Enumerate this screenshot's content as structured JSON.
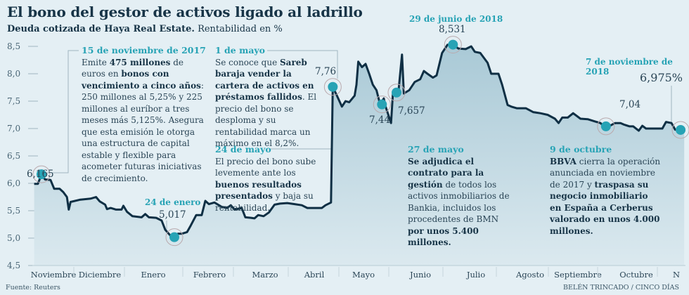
{
  "header": {
    "title": "El bono del gestor de activos ligado al ladrillo",
    "subtitle_bold": "Deuda cotizada de Haya Real Estate.",
    "subtitle_rest": " Rentabilidad en %"
  },
  "footer": {
    "source": "Fuente: Reuters",
    "credit": "BELÉN TRINCADO / CINCO DÍAS"
  },
  "colors": {
    "background": "#e4eff4",
    "line": "#0f2f44",
    "area_top": "#a9c9d6",
    "area_bottom": "#dbe9ef",
    "highlight": "#27a3b5",
    "text": "#2a4556"
  },
  "annotations": {
    "nov15": {
      "date": "15 de noviembre de 2017",
      "parts": [
        {
          "t": "Emite ",
          "b": false
        },
        {
          "t": "475 millones",
          "b": true
        },
        {
          "t": " de euros en ",
          "b": false
        },
        {
          "t": "bonos con vencimiento a cinco años",
          "b": true
        },
        {
          "t": ": 250 millones al 5,25% y 225 millones al euríbor a tres meses más 5,125%. Asegura que esta emisión le otorga una estructura de capital estable y flexible para acometer futuras iniciativas de crecimiento.",
          "b": false
        }
      ]
    },
    "may1": {
      "date": "1 de mayo",
      "parts": [
        {
          "t": "Se conoce que ",
          "b": false
        },
        {
          "t": "Sareb baraja vender la cartera de activos en préstamos fallidos",
          "b": true
        },
        {
          "t": ". El precio del bono se desploma y su rentabilidad marca un máximo en el 8,2%.",
          "b": false
        }
      ]
    },
    "may24": {
      "date": "24 de mayo",
      "parts": [
        {
          "t": "El precio del bono sube levemente ante los ",
          "b": false
        },
        {
          "t": "buenos resultados presentados",
          "b": true
        },
        {
          "t": " y baja su rentabilidad.",
          "b": false
        }
      ]
    },
    "may27": {
      "date": "27 de mayo",
      "parts": [
        {
          "t": "Se adjudica el contrato para la gestión",
          "b": true
        },
        {
          "t": " de todos los activos inmobiliarios de Bankia, incluidos los procedentes de BMN ",
          "b": false
        },
        {
          "t": "por unos 5.400 millones.",
          "b": true
        }
      ]
    },
    "oct9": {
      "date": "9 de octubre",
      "parts": [
        {
          "t": "BBVA",
          "b": true
        },
        {
          "t": " cierra la operación anunciada en noviembre de 2017 y ",
          "b": false
        },
        {
          "t": "traspasa su negocio inmobiliario en España a Cerberus valorado en unos 4.000 millones.",
          "b": true
        }
      ]
    }
  },
  "chart_data": {
    "type": "area",
    "title": "El bono del gestor de activos ligado al ladrillo",
    "subtitle": "Deuda cotizada de Haya Real Estate. Rentabilidad en %",
    "xlabel": "",
    "ylabel": "Rentabilidad en %",
    "ylim": [
      4.5,
      8.5
    ],
    "yticks": [
      "8,5",
      "8,0",
      "7,5",
      "7,0",
      "6,5",
      "6,0",
      "5,5",
      "5,0",
      "4,5"
    ],
    "ytick_values": [
      8.5,
      8.0,
      7.5,
      7.0,
      6.5,
      6.0,
      5.5,
      5.0,
      4.5
    ],
    "grid": false,
    "months": [
      "Noviembre",
      "Diciembre",
      "Enero",
      "Febrero",
      "Marzo",
      "Abril",
      "Mayo",
      "Junio",
      "Julio",
      "Agosto",
      "Septiembre",
      "Octubre",
      "N"
    ],
    "x_unit": "months since 1 nov 2017",
    "series": [
      {
        "name": "Rentabilidad",
        "points": [
          [
            0.05,
            5.99
          ],
          [
            0.15,
            5.99
          ],
          [
            0.25,
            6.16
          ],
          [
            0.35,
            6.07
          ],
          [
            0.5,
            6.06
          ],
          [
            0.6,
            5.9
          ],
          [
            0.75,
            5.9
          ],
          [
            0.85,
            5.84
          ],
          [
            0.95,
            5.75
          ],
          [
            1.0,
            5.52
          ],
          [
            1.05,
            5.66
          ],
          [
            1.3,
            5.7
          ],
          [
            1.6,
            5.72
          ],
          [
            1.75,
            5.75
          ],
          [
            1.85,
            5.67
          ],
          [
            2.0,
            5.61
          ],
          [
            2.05,
            5.53
          ],
          [
            2.15,
            5.55
          ],
          [
            2.3,
            5.52
          ],
          [
            2.45,
            5.52
          ],
          [
            2.5,
            5.59
          ],
          [
            2.6,
            5.48
          ],
          [
            2.75,
            5.4
          ],
          [
            3.0,
            5.38
          ],
          [
            3.1,
            5.44
          ],
          [
            3.2,
            5.38
          ],
          [
            3.4,
            5.37
          ],
          [
            3.55,
            5.32
          ],
          [
            3.65,
            5.15
          ],
          [
            3.8,
            5.04
          ],
          [
            3.9,
            5.02
          ],
          [
            4.0,
            5.08
          ],
          [
            4.1,
            5.08
          ],
          [
            4.25,
            5.11
          ],
          [
            4.35,
            5.23
          ],
          [
            4.5,
            5.42
          ],
          [
            4.65,
            5.42
          ],
          [
            4.75,
            5.68
          ],
          [
            4.85,
            5.62
          ],
          [
            5.0,
            5.65
          ],
          [
            5.2,
            5.57
          ],
          [
            5.35,
            5.55
          ],
          [
            5.45,
            5.6
          ],
          [
            5.55,
            5.52
          ],
          [
            5.75,
            5.55
          ],
          [
            5.85,
            5.38
          ],
          [
            6.0,
            5.37
          ],
          [
            6.1,
            5.36
          ],
          [
            6.2,
            5.42
          ],
          [
            6.35,
            5.4
          ],
          [
            6.5,
            5.47
          ],
          [
            6.65,
            5.61
          ],
          [
            6.8,
            5.63
          ],
          [
            7.0,
            5.64
          ],
          [
            7.2,
            5.62
          ],
          [
            7.4,
            5.6
          ],
          [
            7.55,
            5.55
          ],
          [
            7.75,
            5.55
          ],
          [
            7.95,
            5.55
          ],
          [
            8.05,
            5.6
          ],
          [
            8.2,
            5.65
          ],
          [
            8.25,
            7.76
          ],
          [
            8.35,
            7.62
          ],
          [
            8.5,
            7.4
          ],
          [
            8.6,
            7.5
          ],
          [
            8.7,
            7.48
          ],
          [
            8.85,
            7.6
          ],
          [
            8.9,
            7.8
          ],
          [
            8.95,
            8.22
          ],
          [
            9.05,
            8.12
          ],
          [
            9.15,
            8.18
          ],
          [
            9.25,
            8.0
          ],
          [
            9.35,
            7.8
          ],
          [
            9.45,
            7.7
          ],
          [
            9.55,
            7.44
          ],
          [
            9.65,
            7.55
          ],
          [
            9.7,
            7.4
          ],
          [
            9.8,
            7.2
          ],
          [
            9.85,
            7.1
          ],
          [
            9.9,
            7.63
          ],
          [
            9.95,
            7.7
          ],
          [
            10.05,
            7.657
          ],
          [
            10.15,
            8.35
          ],
          [
            10.2,
            7.64
          ],
          [
            10.35,
            7.7
          ],
          [
            10.5,
            7.85
          ],
          [
            10.65,
            7.9
          ],
          [
            10.75,
            8.05
          ],
          [
            10.85,
            8.0
          ],
          [
            11.0,
            7.93
          ],
          [
            11.1,
            7.97
          ],
          [
            11.25,
            8.38
          ],
          [
            11.4,
            8.53
          ],
          [
            11.55,
            8.531
          ],
          [
            11.7,
            8.46
          ],
          [
            11.9,
            8.45
          ],
          [
            12.05,
            8.5
          ],
          [
            12.15,
            8.4
          ],
          [
            12.3,
            8.38
          ],
          [
            12.5,
            8.2
          ],
          [
            12.6,
            8.0
          ],
          [
            12.8,
            8.0
          ],
          [
            12.9,
            7.8
          ],
          [
            13.05,
            7.43
          ],
          [
            13.15,
            7.4
          ],
          [
            13.3,
            7.37
          ],
          [
            13.55,
            7.37
          ],
          [
            13.75,
            7.3
          ],
          [
            13.95,
            7.28
          ],
          [
            14.15,
            7.25
          ],
          [
            14.35,
            7.18
          ],
          [
            14.45,
            7.1
          ],
          [
            14.55,
            7.2
          ],
          [
            14.7,
            7.2
          ],
          [
            14.85,
            7.28
          ],
          [
            15.05,
            7.18
          ],
          [
            15.25,
            7.17
          ],
          [
            15.45,
            7.13
          ],
          [
            15.6,
            7.1
          ],
          [
            15.7,
            7.04
          ],
          [
            15.8,
            7.03
          ],
          [
            16.0,
            7.1
          ],
          [
            16.15,
            7.1
          ],
          [
            16.25,
            7.07
          ],
          [
            16.4,
            7.04
          ],
          [
            16.5,
            7.04
          ],
          [
            16.65,
            6.96
          ],
          [
            16.75,
            7.05
          ],
          [
            16.85,
            7.0
          ],
          [
            17.05,
            7.0
          ],
          [
            17.3,
            7.0
          ],
          [
            17.4,
            7.12
          ],
          [
            17.55,
            7.1
          ],
          [
            17.65,
            6.98
          ],
          [
            17.8,
            6.975
          ],
          [
            17.9,
            6.975
          ]
        ]
      }
    ],
    "highlights": [
      {
        "x": 0.25,
        "value": 6.165,
        "label": "6,165",
        "date": ""
      },
      {
        "x": 3.9,
        "value": 5.017,
        "label": "5,017",
        "date": "24 de enero"
      },
      {
        "x": 8.25,
        "value": 7.76,
        "label": "7,76",
        "date": ""
      },
      {
        "x": 9.6,
        "value": 7.44,
        "label": "7,44",
        "date": ""
      },
      {
        "x": 10.0,
        "value": 7.657,
        "label": "7,657",
        "date": ""
      },
      {
        "x": 11.55,
        "value": 8.531,
        "label": "8,531",
        "date": "29 de junio de 2018"
      },
      {
        "x": 15.75,
        "value": 7.04,
        "label": "7,04",
        "date": ""
      },
      {
        "x": 17.8,
        "value": 6.975,
        "label": "6,975%",
        "date": "7 de noviembre de 2018"
      }
    ]
  }
}
